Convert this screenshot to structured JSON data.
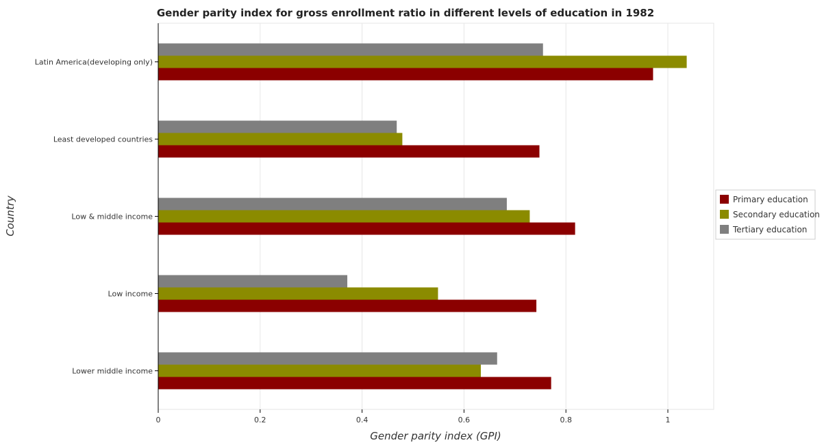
{
  "chart_data": {
    "type": "bar",
    "orientation": "horizontal",
    "title": "Gender parity index for gross enrollment ratio in different levels of education in 1982",
    "xlabel": "Gender parity index (GPI)",
    "ylabel": "Country",
    "xlim": [
      0,
      1.09
    ],
    "xticks": [
      0,
      0.2,
      0.4,
      0.6,
      0.8,
      1
    ],
    "xtick_labels": [
      "0",
      "0.2",
      "0.4",
      "0.6",
      "0.8",
      "1"
    ],
    "categories": [
      "Latin America(developing only)",
      "Least developed countries",
      "Low & middle income",
      "Low income",
      "Lower middle income"
    ],
    "series": [
      {
        "name": "Primary education",
        "color": "#8b0000",
        "values": [
          0.971,
          0.748,
          0.818,
          0.742,
          0.771
        ]
      },
      {
        "name": "Secondary education",
        "color": "#8b8b00",
        "values": [
          1.037,
          0.479,
          0.729,
          0.549,
          0.633
        ]
      },
      {
        "name": "Tertiary education",
        "color": "#7f7f7f",
        "values": [
          0.755,
          0.468,
          0.684,
          0.371,
          0.665
        ]
      }
    ],
    "grid": true,
    "legend_position": "right"
  }
}
